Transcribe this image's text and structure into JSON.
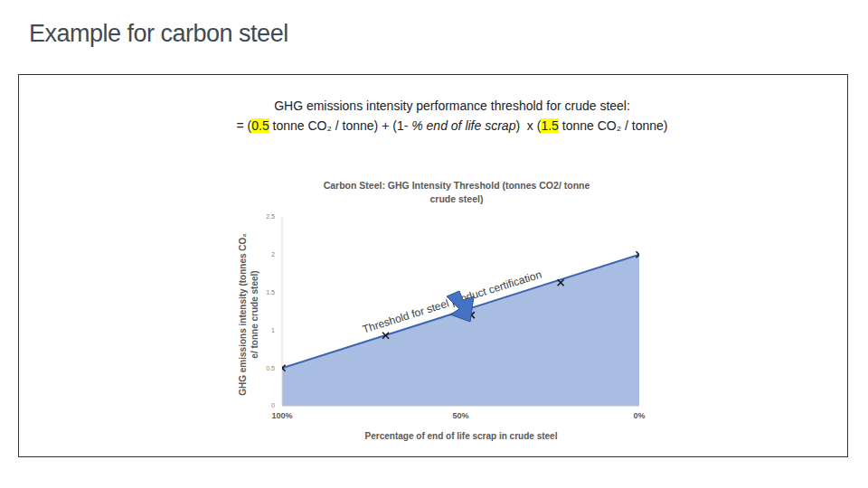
{
  "slide_title": "Example for carbon steel",
  "formula": {
    "heading": "GHG emissions intensity performance threshold for crude steel:",
    "segments": [
      {
        "text": "= ("
      },
      {
        "text": "0.5",
        "highlight": true
      },
      {
        "text": " tonne CO₂ / tonne) + (1- "
      },
      {
        "text": "% end of life scrap",
        "italic": true
      },
      {
        "text": ")  x ("
      },
      {
        "text": "1.5",
        "highlight": true
      },
      {
        "text": " tonne CO₂ / tonne)"
      }
    ]
  },
  "chart_data": {
    "type": "area",
    "title": "Carbon Steel: GHG Intensity Threshold (tonnes CO2/ tonne crude steel)",
    "x_label": "Percentage of end of life scrap in crude steel",
    "y_label": "GHG emissions intensity (tonnes CO₂ e/ tonne crude steel)",
    "annotation": "Threshold for steel product certification",
    "series": [
      {
        "type": "area",
        "color": "#a9bde3",
        "x": [
          100,
          0
        ],
        "values": [
          0.5,
          2.0
        ]
      },
      {
        "type": "scatter",
        "marker": "x",
        "color": "#1a1a1a",
        "x": [
          100,
          71,
          47,
          22,
          0
        ],
        "values": [
          0.5,
          0.93,
          1.2,
          1.63,
          2.0
        ]
      }
    ],
    "xlim": [
      100,
      0
    ],
    "xticks": [
      {
        "value": 100,
        "label": "100%"
      },
      {
        "value": 50,
        "label": "50%"
      },
      {
        "value": 0,
        "label": "0%"
      }
    ],
    "ylim": [
      0,
      2.5
    ],
    "yticks": [
      0,
      0.5,
      1,
      1.5,
      2,
      2.5
    ],
    "grid": false
  }
}
